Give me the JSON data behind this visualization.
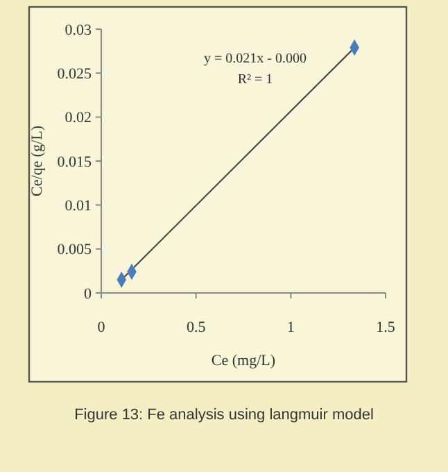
{
  "chart_data": {
    "type": "scatter",
    "xlabel": "Ce (mg/L)",
    "ylabel": "Ce/qe (g/L)",
    "xlim": [
      0,
      1.5
    ],
    "xticks": [
      0,
      0.5,
      1,
      1.5
    ],
    "ylim": [
      0,
      0.03
    ],
    "yticks": [
      0,
      0.005,
      0.01,
      0.015,
      0.02,
      0.025,
      0.03
    ],
    "grid": false,
    "marker": "diamond",
    "x": [
      0.107,
      0.161,
      1.336
    ],
    "values": [
      0.0015,
      0.0024,
      0.0279
    ],
    "color": "#4a7ebb",
    "series": [
      {
        "type": "line",
        "x": [
          0.107,
          1.336
        ],
        "values": [
          0.0015,
          0.0279
        ],
        "color": "#404040",
        "line_style": "solid",
        "marker": "none"
      }
    ],
    "annotations": [
      "y = 0.021x - 0.000",
      "R² = 1",
      "Figure 13: Fe analysis using langmuir model"
    ]
  }
}
